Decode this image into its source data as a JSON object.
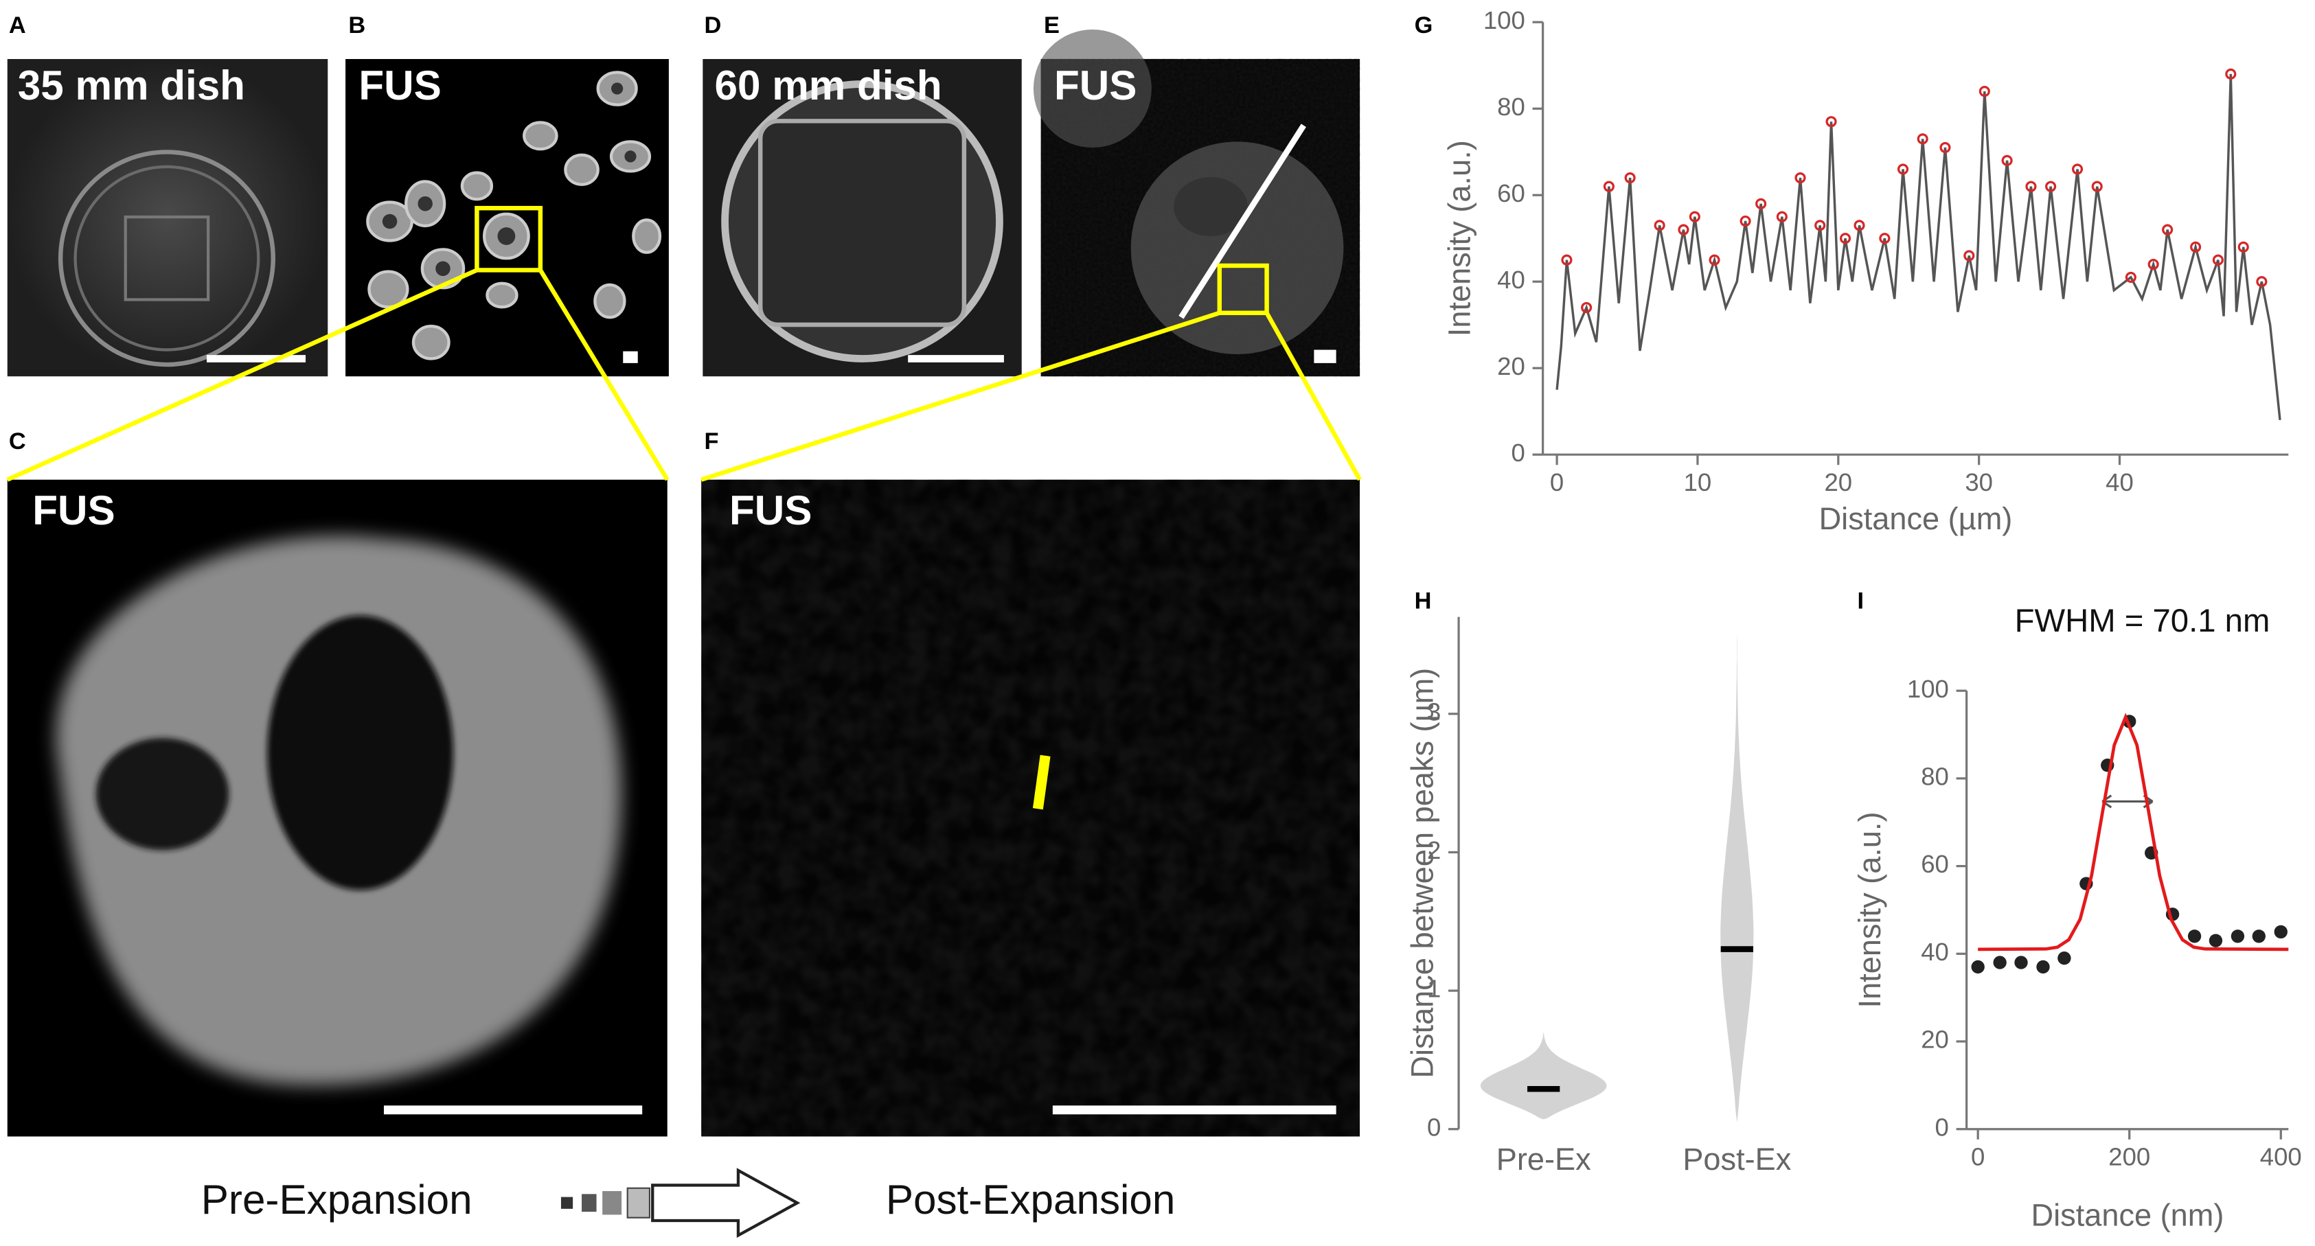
{
  "panels": [
    {
      "label": "A",
      "caption": "35 mm dish"
    },
    {
      "label": "B",
      "caption": "FUS"
    },
    {
      "label": "C",
      "caption": "FUS"
    },
    {
      "label": "D",
      "caption": "60 mm dish"
    },
    {
      "label": "E",
      "caption": "FUS"
    },
    {
      "label": "F",
      "caption": "FUS"
    }
  ],
  "bottom": {
    "left": "Pre-Expansion",
    "right": "Post-Expansion"
  },
  "chart_data": [
    {
      "type": "line",
      "panel_label": "G",
      "xlabel": "Distance (µm)",
      "ylabel": "Intensity (a.u.)",
      "xlim": [
        -1,
        52
      ],
      "ylim": [
        0,
        100
      ],
      "xticks": [
        0,
        10,
        20,
        30,
        40
      ],
      "yticks": [
        0,
        20,
        40,
        60,
        80,
        100
      ],
      "series": [
        {
          "color": "#555555",
          "x": [
            0,
            0.3,
            0.7,
            1.3,
            2.1,
            2.8,
            3.7,
            4.4,
            5.2,
            5.9,
            6.6,
            7.3,
            8.2,
            9.0,
            9.4,
            9.8,
            10.5,
            11.2,
            12.0,
            12.8,
            13.4,
            13.9,
            14.5,
            15.2,
            16.0,
            16.6,
            17.3,
            18.0,
            18.7,
            19.1,
            19.5,
            20.0,
            20.5,
            21.0,
            21.5,
            22.4,
            23.3,
            24.0,
            24.6,
            25.3,
            26.0,
            26.8,
            27.6,
            28.5,
            29.3,
            29.8,
            30.4,
            31.2,
            32.0,
            32.8,
            33.7,
            34.4,
            35.1,
            36.0,
            37.0,
            37.7,
            38.4,
            39.6,
            40.8,
            41.6,
            42.4,
            42.9,
            43.4,
            44.4,
            45.4,
            46.2,
            47.0,
            47.4,
            47.9,
            48.3,
            48.8,
            49.4,
            50.1,
            50.7,
            51.4
          ],
          "values": [
            15,
            25,
            45,
            28,
            34,
            26,
            62,
            35,
            64,
            24,
            38,
            53,
            38,
            52,
            44,
            55,
            38,
            45,
            34,
            40,
            54,
            42,
            58,
            40,
            55,
            38,
            64,
            35,
            53,
            40,
            77,
            38,
            50,
            40,
            53,
            38,
            50,
            36,
            66,
            40,
            73,
            40,
            71,
            33,
            46,
            38,
            84,
            40,
            68,
            40,
            62,
            38,
            62,
            36,
            66,
            40,
            62,
            38,
            41,
            36,
            44,
            38,
            52,
            36,
            48,
            38,
            45,
            32,
            88,
            33,
            48,
            30,
            40,
            30,
            8
          ]
        },
        {
          "color": "#d62728",
          "marker": "circle",
          "x": [
            0.7,
            2.1,
            3.7,
            5.2,
            7.3,
            9.0,
            9.8,
            11.2,
            13.4,
            14.5,
            16.0,
            17.3,
            18.7,
            19.5,
            20.5,
            21.5,
            23.3,
            24.6,
            26.0,
            27.6,
            29.3,
            30.4,
            32.0,
            33.7,
            35.1,
            37.0,
            38.4,
            40.8,
            42.4,
            43.4,
            45.4,
            47.0,
            47.9,
            48.8,
            50.1
          ],
          "values": [
            45,
            34,
            62,
            64,
            53,
            52,
            55,
            45,
            54,
            58,
            55,
            64,
            53,
            77,
            50,
            53,
            50,
            66,
            73,
            71,
            46,
            84,
            68,
            62,
            62,
            66,
            62,
            41,
            44,
            52,
            48,
            45,
            88,
            48,
            40
          ]
        }
      ]
    },
    {
      "type": "violin",
      "panel_label": "H",
      "ylabel": "Distance between peaks (µm)",
      "categories": [
        "Pre-Ex",
        "Post-Ex"
      ],
      "medians": [
        0.29,
        1.3
      ],
      "mins": [
        0.07,
        0.05
      ],
      "maxs": [
        0.7,
        3.7
      ],
      "ylim": [
        0,
        3.7
      ],
      "yticks": [
        0,
        1,
        2,
        3
      ],
      "color": "#d3d3d3"
    },
    {
      "type": "scatter",
      "panel_label": "I",
      "title": "FWHM = 70.1 nm",
      "xlabel": "Distance (nm)",
      "ylabel": "Intensity (a.u.)",
      "xlim": [
        -15,
        410
      ],
      "ylim": [
        0,
        100
      ],
      "xticks": [
        0,
        200,
        400
      ],
      "yticks": [
        0,
        20,
        40,
        60,
        80,
        100
      ],
      "series": [
        {
          "color": "#222222",
          "marker": "circle",
          "x": [
            0,
            29,
            57,
            86,
            114,
            143,
            171,
            200,
            229,
            257,
            286,
            314,
            343,
            371,
            400
          ],
          "values": [
            37,
            38,
            38,
            37,
            39,
            56,
            83,
            93,
            63,
            49,
            44,
            43,
            44,
            44,
            45
          ]
        },
        {
          "color": "#e31a1c",
          "x": [
            0,
            90,
            105,
            120,
            135,
            150,
            165,
            180,
            195,
            210,
            225,
            240,
            255,
            270,
            285,
            300,
            410
          ],
          "values": [
            41,
            41.1,
            41.5,
            43.2,
            47.9,
            57.8,
            72.8,
            87.6,
            94,
            87.6,
            72.8,
            57.8,
            47.9,
            43.2,
            41.5,
            41.1,
            41
          ]
        }
      ]
    }
  ]
}
